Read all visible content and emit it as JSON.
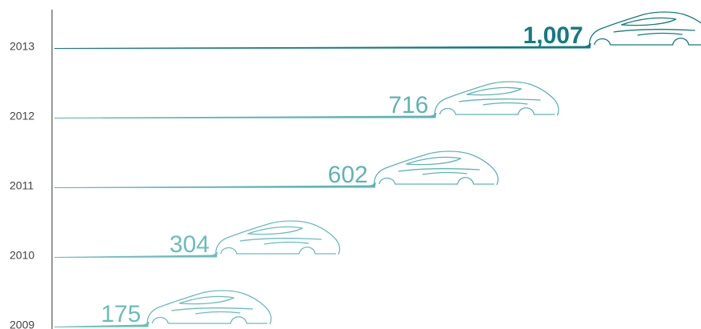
{
  "chart_data": {
    "type": "bar",
    "orientation": "horizontal",
    "categories": [
      "2009",
      "2010",
      "2011",
      "2012",
      "2013"
    ],
    "values": [
      175,
      304,
      602,
      716,
      1007
    ],
    "value_labels": [
      "175",
      "304",
      "602",
      "716",
      "1,007"
    ],
    "colors": [
      "#6bbcbd",
      "#6bbcbd",
      "#5fb3b5",
      "#5fb3b5",
      "#137a80"
    ]
  }
}
